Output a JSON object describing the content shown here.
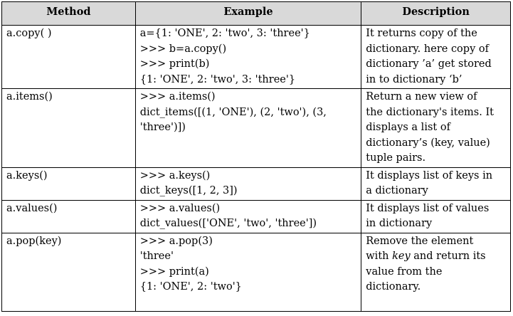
{
  "table": {
    "headers": [
      "Method",
      "Example",
      "Description"
    ],
    "rows": [
      {
        "method": "a.copy( )",
        "example": [
          "a={1: 'ONE', 2: 'two', 3: 'three'}",
          ">>> b=a.copy()",
          ">>> print(b)",
          "{1: 'ONE', 2: 'two', 3: 'three'}"
        ],
        "description": [
          "It returns copy of the",
          "dictionary. here copy of",
          "dictionary ’a’ get stored",
          "in to dictionary ‘b’"
        ]
      },
      {
        "method": "a.items()",
        "example": [
          ">>> a.items()",
          "dict_items([(1, 'ONE'), (2, 'two'), (3,",
          "'three')])"
        ],
        "description": [
          "Return a new view of",
          "the dictionary's items. It",
          "displays a list of",
          "dictionary’s (key, value)",
          "tuple pairs."
        ]
      },
      {
        "method": "a.keys()",
        "example": [
          ">>> a.keys()",
          "dict_keys([1, 2, 3])"
        ],
        "description": [
          "It displays list of keys in",
          "a dictionary"
        ]
      },
      {
        "method": "a.values()",
        "example": [
          ">>> a.values()",
          "dict_values(['ONE', 'two', 'three'])"
        ],
        "description": [
          "It displays list of values",
          "in dictionary"
        ]
      },
      {
        "method": "a.pop(key)",
        "example": [
          ">>> a.pop(3)",
          "'three'",
          ">>> print(a)",
          "{1: 'ONE', 2: 'two'}"
        ],
        "description_pre": "Remove the element",
        "description_with": "with ",
        "description_key": "key",
        "description_post": " and return its",
        "description_rest": [
          "value from the",
          "dictionary."
        ]
      }
    ]
  }
}
